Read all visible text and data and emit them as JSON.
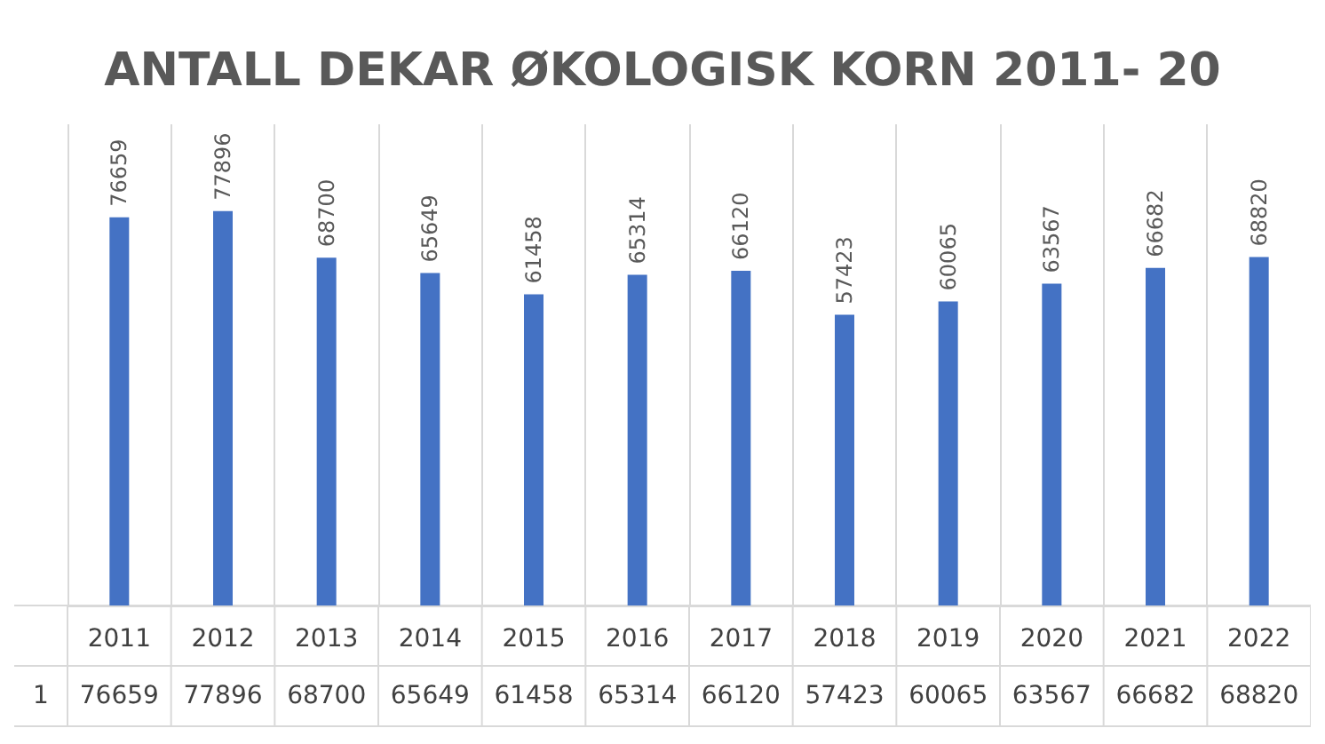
{
  "chart_data": {
    "type": "bar",
    "title": "ANTALL DEKAR ØKOLOGISK KORN 2011- 20",
    "categories": [
      "2011",
      "2012",
      "2013",
      "2014",
      "2015",
      "2016",
      "2017",
      "2018",
      "2019",
      "2020",
      "2021",
      "2022"
    ],
    "series": [
      {
        "name": "1",
        "color": "#4472c4",
        "values": [
          76659,
          77896,
          68700,
          65649,
          61458,
          65314,
          66120,
          57423,
          60065,
          63567,
          66682,
          68820
        ],
        "value_labels": [
          "76659",
          "77896",
          "68700",
          "65649",
          "61458",
          "65314",
          "66120",
          "57423",
          "60065",
          "63567",
          "66682",
          "68820"
        ]
      }
    ],
    "annotations": [
      "76659",
      "77896",
      "68700",
      "65649",
      "61458",
      "65314",
      "66120",
      "57423",
      "60065",
      "63567",
      "66682",
      "68820"
    ],
    "grid": "x",
    "legend": false
  }
}
